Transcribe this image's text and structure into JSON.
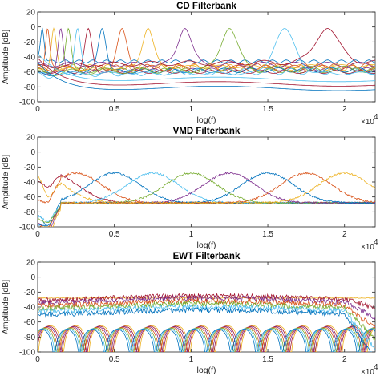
{
  "chart_data": [
    {
      "type": "line",
      "title": "CD Filterbank",
      "xlabel": "log(f)",
      "ylabel": "Amplitude [dB]",
      "x_exponent_label": "×10",
      "x_exponent": "4",
      "xlim": [
        0,
        22000
      ],
      "ylim": [
        -100,
        20
      ],
      "xticks": [
        0,
        0.5,
        1,
        1.5,
        2
      ],
      "yticks": [
        20,
        0,
        -20,
        -40,
        -60,
        -80,
        -100
      ],
      "grid": false,
      "model": "peaked",
      "peaks_x": [
        300,
        650,
        1050,
        1500,
        2000,
        2600,
        3300,
        4200,
        5500,
        7200,
        9600,
        12500,
        16100,
        18900
      ],
      "peak_y": -2,
      "floor_y": [
        -46,
        -51,
        -54,
        -56,
        -58,
        -59,
        -60,
        -57,
        -55,
        -52,
        -50,
        -56,
        -62,
        -47
      ],
      "series_colors": [
        "#0072BD",
        "#D95319",
        "#EDB120",
        "#7E2F8E",
        "#77AC30",
        "#4DBEEE",
        "#A2142F",
        "#0072BD",
        "#D95319",
        "#EDB120",
        "#7E2F8E",
        "#77AC30",
        "#4DBEEE",
        "#A2142F"
      ]
    },
    {
      "type": "line",
      "title": "VMD Filterbank",
      "xlabel": "log(f)",
      "ylabel": "Amplitude [dB]",
      "x_exponent_label": "×10",
      "x_exponent": "4",
      "xlim": [
        0,
        22000
      ],
      "ylim": [
        -100,
        20
      ],
      "xticks": [
        0,
        0.5,
        1,
        1.5,
        2
      ],
      "yticks": [
        20,
        0,
        -20,
        -40,
        -60,
        -80,
        -100
      ],
      "grid": false,
      "model": "bands",
      "centers_x": [
        0,
        900,
        2500,
        5000,
        7500,
        10000,
        12500,
        15000,
        17500,
        20000
      ],
      "peak_y": -28,
      "floor_y": -68,
      "series_colors": [
        "#EDB120",
        "#A2142F",
        "#D95319",
        "#0072BD",
        "#4DBEEE",
        "#77AC30",
        "#7E2F8E",
        "#0072BD",
        "#D95319",
        "#EDB120"
      ]
    },
    {
      "type": "line",
      "title": "EWT Filterbank",
      "xlabel": "log(f)",
      "ylabel": "Amplitude [dB]",
      "x_exponent_label": "×10",
      "x_exponent": "4",
      "xlim": [
        0,
        22000
      ],
      "ylim": [
        -100,
        20
      ],
      "xticks": [
        0,
        0.5,
        1,
        1.5,
        2
      ],
      "yticks": [
        20,
        0,
        -20,
        -40,
        -60,
        -80,
        -100
      ],
      "grid": false,
      "model": "lobes",
      "lobe_period_x": 1650,
      "lobe_peak_y": -65,
      "top_band_y": [
        -28,
        -33,
        -36,
        -40,
        -44,
        -48,
        -52
      ],
      "series_colors": [
        "#EDB120",
        "#A2142F",
        "#7E2F8E",
        "#D95319",
        "#77AC30",
        "#4DBEEE",
        "#0072BD"
      ]
    }
  ]
}
